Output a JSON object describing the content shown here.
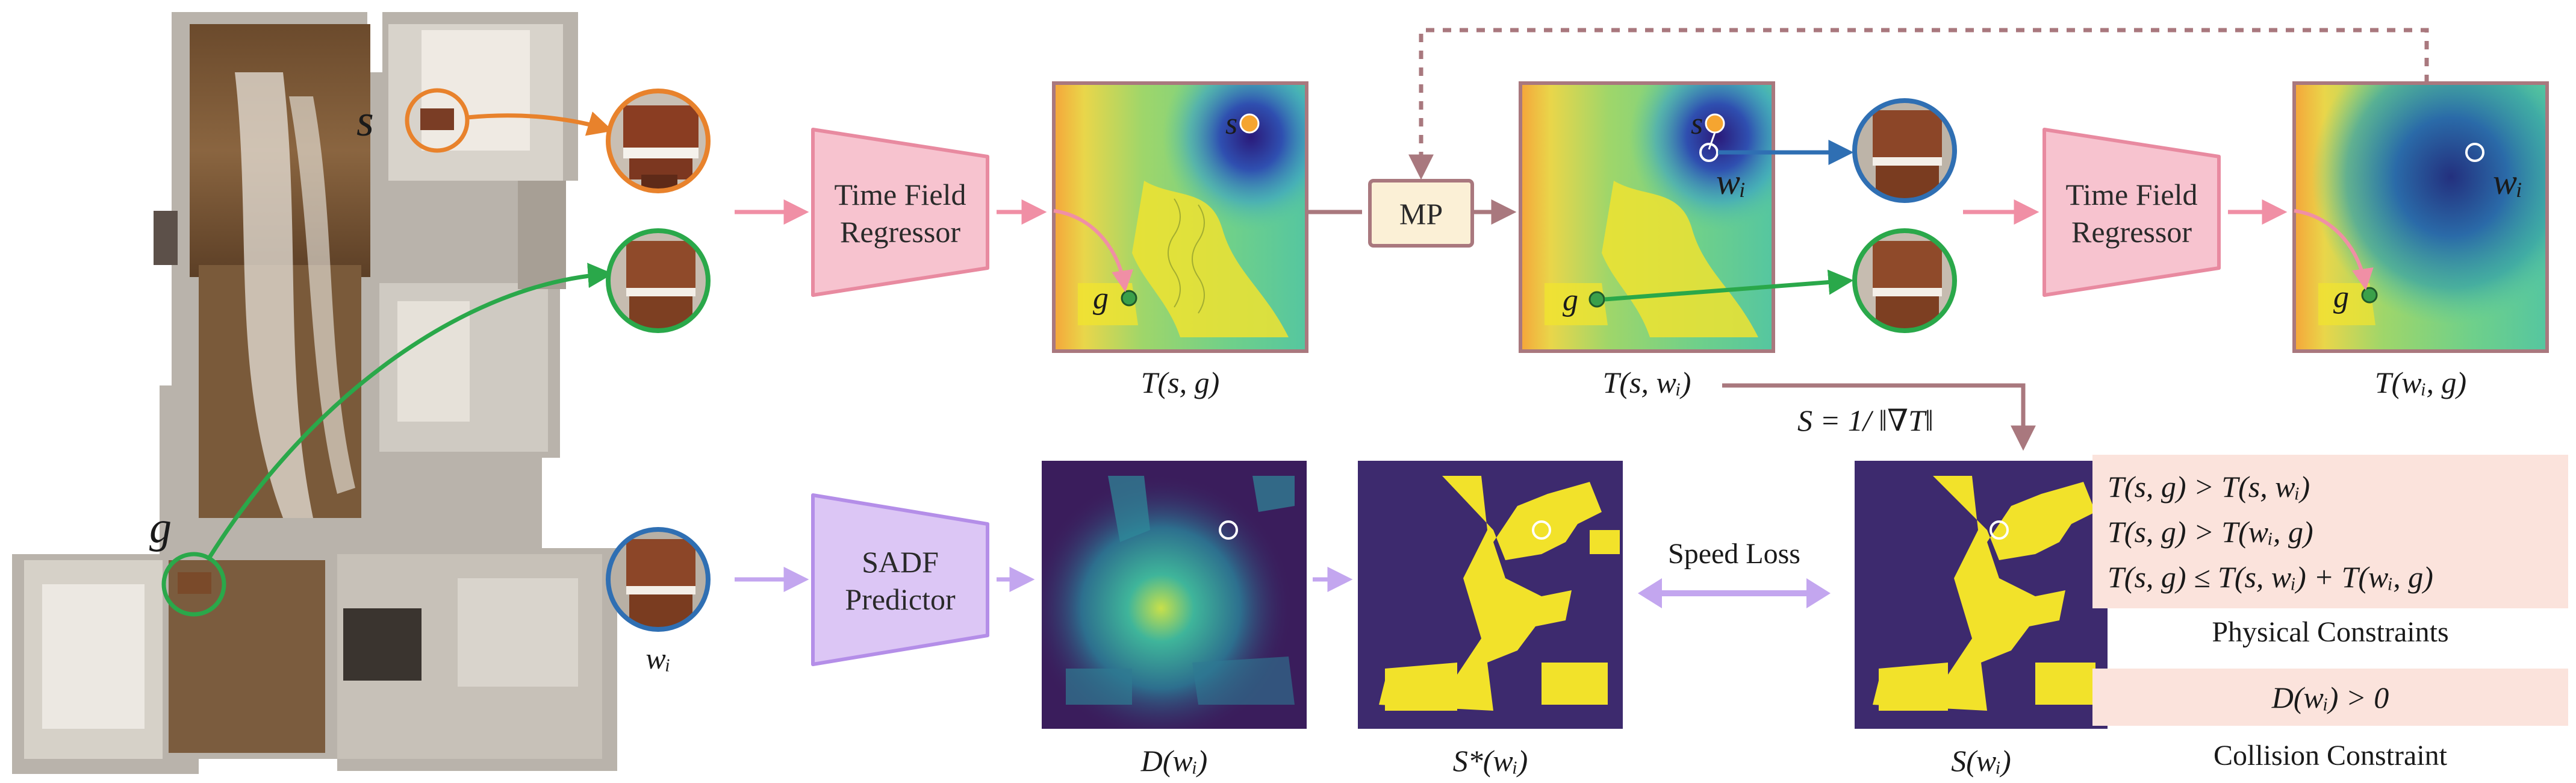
{
  "scene_labels": {
    "start": "s",
    "goal": "g"
  },
  "modules": {
    "time_field_regressor_line1": "Time Field",
    "time_field_regressor_line2": "Regressor",
    "sadf_line1": "SADF",
    "sadf_line2": "Predictor",
    "mp": "MP"
  },
  "map_labels": {
    "t_s_g": "T(s, g)",
    "t_s_wi": "T(s, wᵢ)",
    "t_wi_g": "T(wᵢ, g)",
    "d_wi": "D(wᵢ)",
    "s_star_wi": "S*(wᵢ)",
    "s_wi": "S(wᵢ)",
    "wi": "wᵢ",
    "wi_map": "wᵢ",
    "s_in_map": "s",
    "g_in_map": "g"
  },
  "speed_formula": "S = 1/ ‖∇T‖",
  "speed_loss": "Speed Loss",
  "constraints": {
    "physical": [
      "T(s, g) > T(s, wᵢ)",
      "T(s, g) > T(wᵢ, g)",
      "T(s, g) ≤ T(s, wᵢ) + T(wᵢ, g)"
    ],
    "physical_title": "Physical Constraints",
    "collision": "D(wᵢ) > 0",
    "collision_title": "Collision Constraint"
  },
  "colors": {
    "orange": "#e8822c",
    "green": "#2aa84a",
    "blue": "#2f6fb3",
    "pink_box": "#f7c3cf",
    "pink_border": "#e88aa0",
    "lavender_box": "#dcc6f5",
    "lavender_border": "#b48ee8",
    "mp_box": "#fbf0d6",
    "mp_border": "#a9787e",
    "constraint_bg": "#fbe3dc",
    "dark_purple": "#3a1d5c",
    "yellow": "#f2e22a"
  }
}
